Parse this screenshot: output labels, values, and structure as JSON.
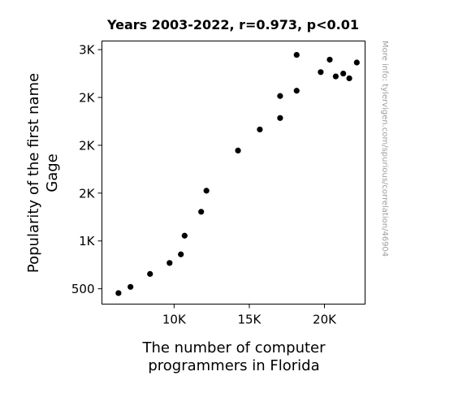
{
  "chart_data": {
    "type": "scatter",
    "title": "Years 2003-2022, r=0.973, p<0.01",
    "xlabel_lines": [
      "The number of computer",
      "programmers in Florida"
    ],
    "ylabel_lines": [
      "Popularity of the first name",
      "Gage"
    ],
    "credit": "More info: tylervigen.com/spurious/correlation/46904",
    "x_ticks": [
      {
        "value": 10000,
        "label": "10K"
      },
      {
        "value": 15000,
        "label": "15K"
      },
      {
        "value": 20000,
        "label": "20K"
      }
    ],
    "y_ticks": [
      {
        "value": 500,
        "label": "500"
      },
      {
        "value": 1000,
        "label": "1K"
      },
      {
        "value": 1500,
        "label": "2K"
      },
      {
        "value": 2000,
        "label": "2K"
      },
      {
        "value": 2500,
        "label": "2K"
      },
      {
        "value": 3000,
        "label": "3K"
      }
    ],
    "xlim": [
      5200,
      22700
    ],
    "ylim": [
      340,
      3090
    ],
    "points": [
      {
        "x": 6300,
        "y": 455
      },
      {
        "x": 7100,
        "y": 520
      },
      {
        "x": 8400,
        "y": 655
      },
      {
        "x": 9700,
        "y": 770
      },
      {
        "x": 10450,
        "y": 860
      },
      {
        "x": 10700,
        "y": 1055
      },
      {
        "x": 11800,
        "y": 1305
      },
      {
        "x": 12150,
        "y": 1525
      },
      {
        "x": 14250,
        "y": 1945
      },
      {
        "x": 15700,
        "y": 2165
      },
      {
        "x": 17050,
        "y": 2285
      },
      {
        "x": 17050,
        "y": 2515
      },
      {
        "x": 18150,
        "y": 2570
      },
      {
        "x": 18150,
        "y": 2945
      },
      {
        "x": 19750,
        "y": 2765
      },
      {
        "x": 20350,
        "y": 2895
      },
      {
        "x": 20750,
        "y": 2720
      },
      {
        "x": 21250,
        "y": 2750
      },
      {
        "x": 21650,
        "y": 2700
      },
      {
        "x": 22150,
        "y": 2865
      }
    ],
    "marker_color": "#000000",
    "grid": false
  }
}
